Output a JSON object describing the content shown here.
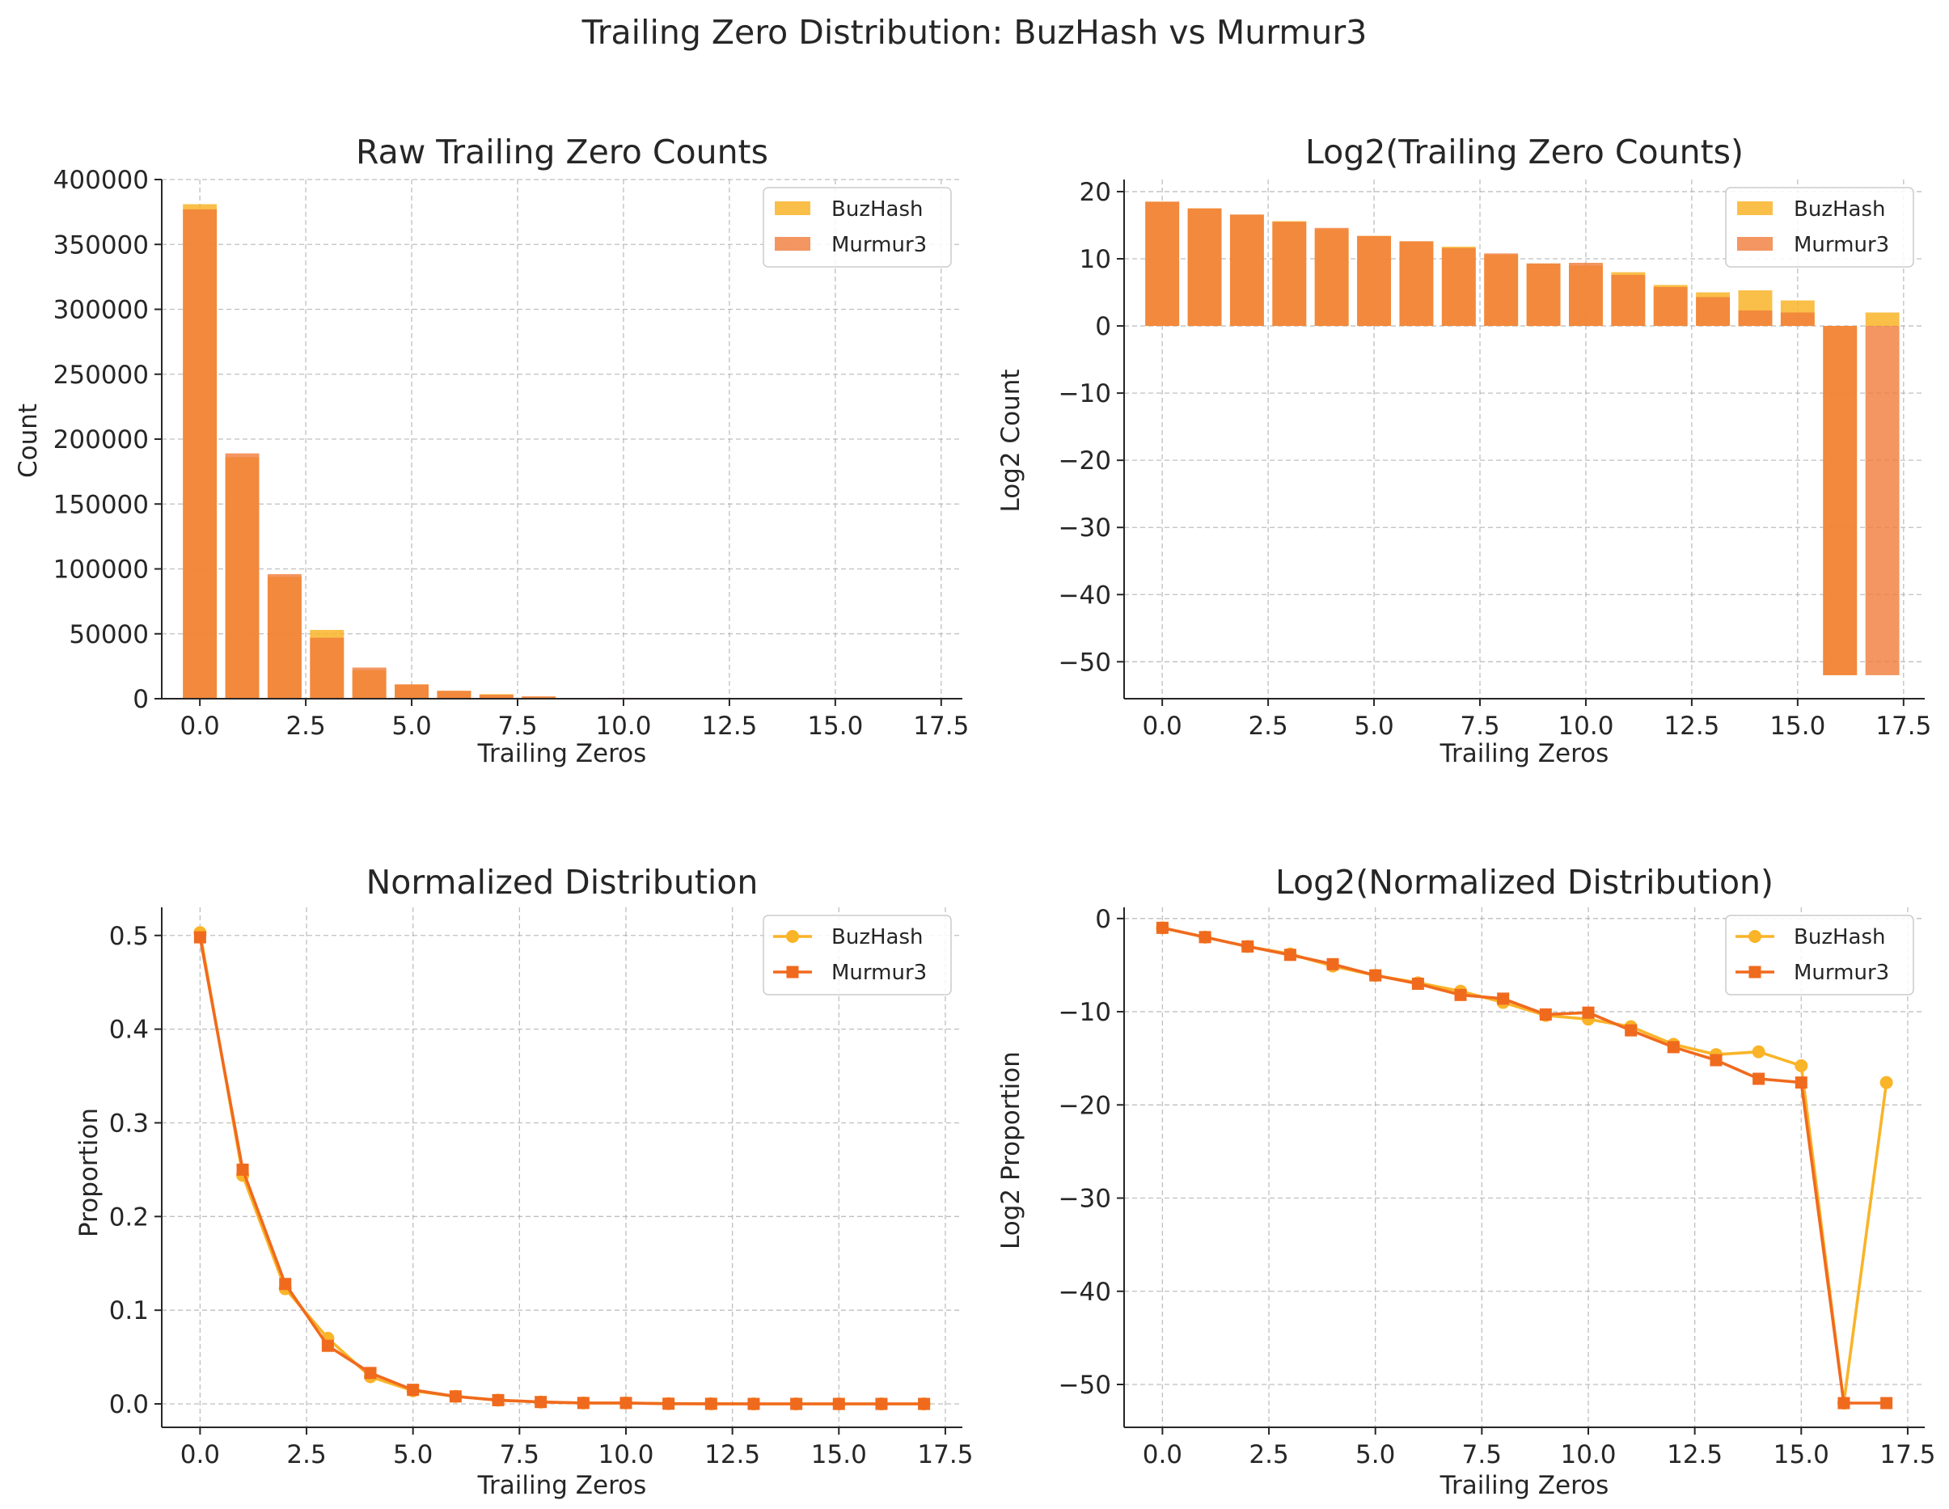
{
  "figure": {
    "title": "Trailing Zero Distribution: BuzHash vs Murmur3"
  },
  "colors": {
    "buzhash": "#f9b428",
    "murmur3": "#f06a1e",
    "murmur3_bar": "#f07c3a",
    "grid": "#b0b0b0",
    "axis": "#262626"
  },
  "chart_data": [
    {
      "id": "raw",
      "type": "bar",
      "title": "Raw Trailing Zero Counts",
      "xlabel": "Trailing Zeros",
      "ylabel": "Count",
      "xlim": [
        -0.9,
        18.0
      ],
      "ylim": [
        0,
        400000
      ],
      "xticks": [
        0,
        2.5,
        5,
        7.5,
        10,
        12.5,
        15,
        17.5
      ],
      "xtick_labels": [
        "0.0",
        "2.5",
        "5.0",
        "7.5",
        "10.0",
        "12.5",
        "15.0",
        "17.5"
      ],
      "yticks": [
        0,
        50000,
        100000,
        150000,
        200000,
        250000,
        300000,
        350000,
        400000
      ],
      "ytick_labels": [
        "0",
        "50000",
        "100000",
        "150000",
        "200000",
        "250000",
        "300000",
        "350000",
        "400000"
      ],
      "grid": true,
      "legend_position": "top-right",
      "x": [
        0,
        1,
        2,
        3,
        4,
        5,
        6,
        7,
        8,
        9,
        10,
        11,
        12,
        13,
        14,
        15,
        16,
        17
      ],
      "series": [
        {
          "name": "BuzHash",
          "values": [
            381000,
            186000,
            94000,
            53000,
            22000,
            11000,
            6000,
            3500,
            1500,
            610,
            540,
            250,
            70,
            33,
            38,
            14,
            0,
            4
          ]
        },
        {
          "name": "Murmur3",
          "values": [
            377000,
            189000,
            96000,
            47000,
            24000,
            11000,
            6100,
            3000,
            1800,
            620,
            660,
            190,
            57,
            20,
            5,
            4,
            0,
            0
          ]
        }
      ]
    },
    {
      "id": "log2counts",
      "type": "bar",
      "title": "Log2(Trailing Zero Counts)",
      "xlabel": "Trailing Zeros",
      "ylabel": "Log2 Count",
      "xlim": [
        -0.9,
        18.0
      ],
      "ylim": [
        -55.5,
        21.8
      ],
      "xticks": [
        0,
        2.5,
        5,
        7.5,
        10,
        12.5,
        15,
        17.5
      ],
      "xtick_labels": [
        "0.0",
        "2.5",
        "5.0",
        "7.5",
        "10.0",
        "12.5",
        "15.0",
        "17.5"
      ],
      "yticks": [
        -50,
        -40,
        -30,
        -20,
        -10,
        0,
        10,
        20
      ],
      "ytick_labels": [
        "−50",
        "−40",
        "−30",
        "−20",
        "−10",
        "0",
        "10",
        "20"
      ],
      "grid": true,
      "legend_position": "top-right",
      "x": [
        0,
        1,
        2,
        3,
        4,
        5,
        6,
        7,
        8,
        9,
        10,
        11,
        12,
        13,
        14,
        15,
        16,
        17
      ],
      "series": [
        {
          "name": "BuzHash",
          "values": [
            18.5,
            17.5,
            16.5,
            15.6,
            14.4,
            13.4,
            12.6,
            11.8,
            10.6,
            9.3,
            9.0,
            8.0,
            6.1,
            5.0,
            5.3,
            3.8,
            -52.0,
            2.0
          ]
        },
        {
          "name": "Murmur3",
          "values": [
            18.5,
            17.5,
            16.6,
            15.5,
            14.6,
            13.4,
            12.6,
            11.6,
            10.8,
            9.3,
            9.4,
            7.6,
            5.8,
            4.3,
            2.3,
            2.0,
            -52.0,
            -52.0
          ]
        }
      ]
    },
    {
      "id": "normalized",
      "type": "line",
      "title": "Normalized Distribution",
      "xlabel": "Trailing Zeros",
      "ylabel": "Proportion",
      "xlim": [
        -0.9,
        17.9
      ],
      "ylim": [
        -0.025,
        0.53
      ],
      "xticks": [
        0,
        2.5,
        5,
        7.5,
        10,
        12.5,
        15,
        17.5
      ],
      "xtick_labels": [
        "0.0",
        "2.5",
        "5.0",
        "7.5",
        "10.0",
        "12.5",
        "15.0",
        "17.5"
      ],
      "yticks": [
        0,
        0.1,
        0.2,
        0.3,
        0.4,
        0.5
      ],
      "ytick_labels": [
        "0.0",
        "0.1",
        "0.2",
        "0.3",
        "0.4",
        "0.5"
      ],
      "grid": true,
      "legend_position": "top-right",
      "x": [
        0,
        1,
        2,
        3,
        4,
        5,
        6,
        7,
        8,
        9,
        10,
        11,
        12,
        13,
        14,
        15,
        16,
        17
      ],
      "series": [
        {
          "name": "BuzHash",
          "marker": "circle",
          "values": [
            0.503,
            0.244,
            0.123,
            0.07,
            0.029,
            0.014,
            0.008,
            0.004,
            0.002,
            0.001,
            0.001,
            0.0003,
            0.0001,
            0,
            0,
            0,
            0,
            0
          ]
        },
        {
          "name": "Murmur3",
          "marker": "square",
          "values": [
            0.498,
            0.25,
            0.128,
            0.062,
            0.033,
            0.015,
            0.008,
            0.004,
            0.002,
            0.001,
            0.001,
            0.0002,
            0.0001,
            0,
            0,
            0,
            0,
            0
          ]
        }
      ]
    },
    {
      "id": "log2normalized",
      "type": "line",
      "title": "Log2(Normalized Distribution)",
      "xlabel": "Trailing Zeros",
      "ylabel": "Log2 Proportion",
      "xlim": [
        -0.9,
        17.9
      ],
      "ylim": [
        -54.6,
        1.2
      ],
      "xticks": [
        0,
        2.5,
        5,
        7.5,
        10,
        12.5,
        15,
        17.5
      ],
      "xtick_labels": [
        "0.0",
        "2.5",
        "5.0",
        "7.5",
        "10.0",
        "12.5",
        "15.0",
        "17.5"
      ],
      "yticks": [
        -50,
        -40,
        -30,
        -20,
        -10,
        0
      ],
      "ytick_labels": [
        "−50",
        "−40",
        "−30",
        "−20",
        "−10",
        "0"
      ],
      "grid": true,
      "legend_position": "top-right",
      "x": [
        0,
        1,
        2,
        3,
        4,
        5,
        6,
        7,
        8,
        9,
        10,
        11,
        12,
        13,
        14,
        15,
        16,
        17
      ],
      "series": [
        {
          "name": "BuzHash",
          "marker": "circle",
          "values": [
            -1.0,
            -2.0,
            -3.0,
            -3.8,
            -5.1,
            -6.1,
            -6.9,
            -7.8,
            -9.0,
            -10.4,
            -10.8,
            -11.6,
            -13.5,
            -14.6,
            -14.3,
            -15.8,
            -52.0,
            -17.6
          ]
        },
        {
          "name": "Murmur3",
          "marker": "square",
          "values": [
            -1.0,
            -2.0,
            -3.0,
            -3.9,
            -4.9,
            -6.1,
            -7.0,
            -8.2,
            -8.6,
            -10.3,
            -10.1,
            -12.0,
            -13.8,
            -15.2,
            -17.2,
            -17.6,
            -52.0,
            -52.0
          ]
        }
      ]
    }
  ]
}
